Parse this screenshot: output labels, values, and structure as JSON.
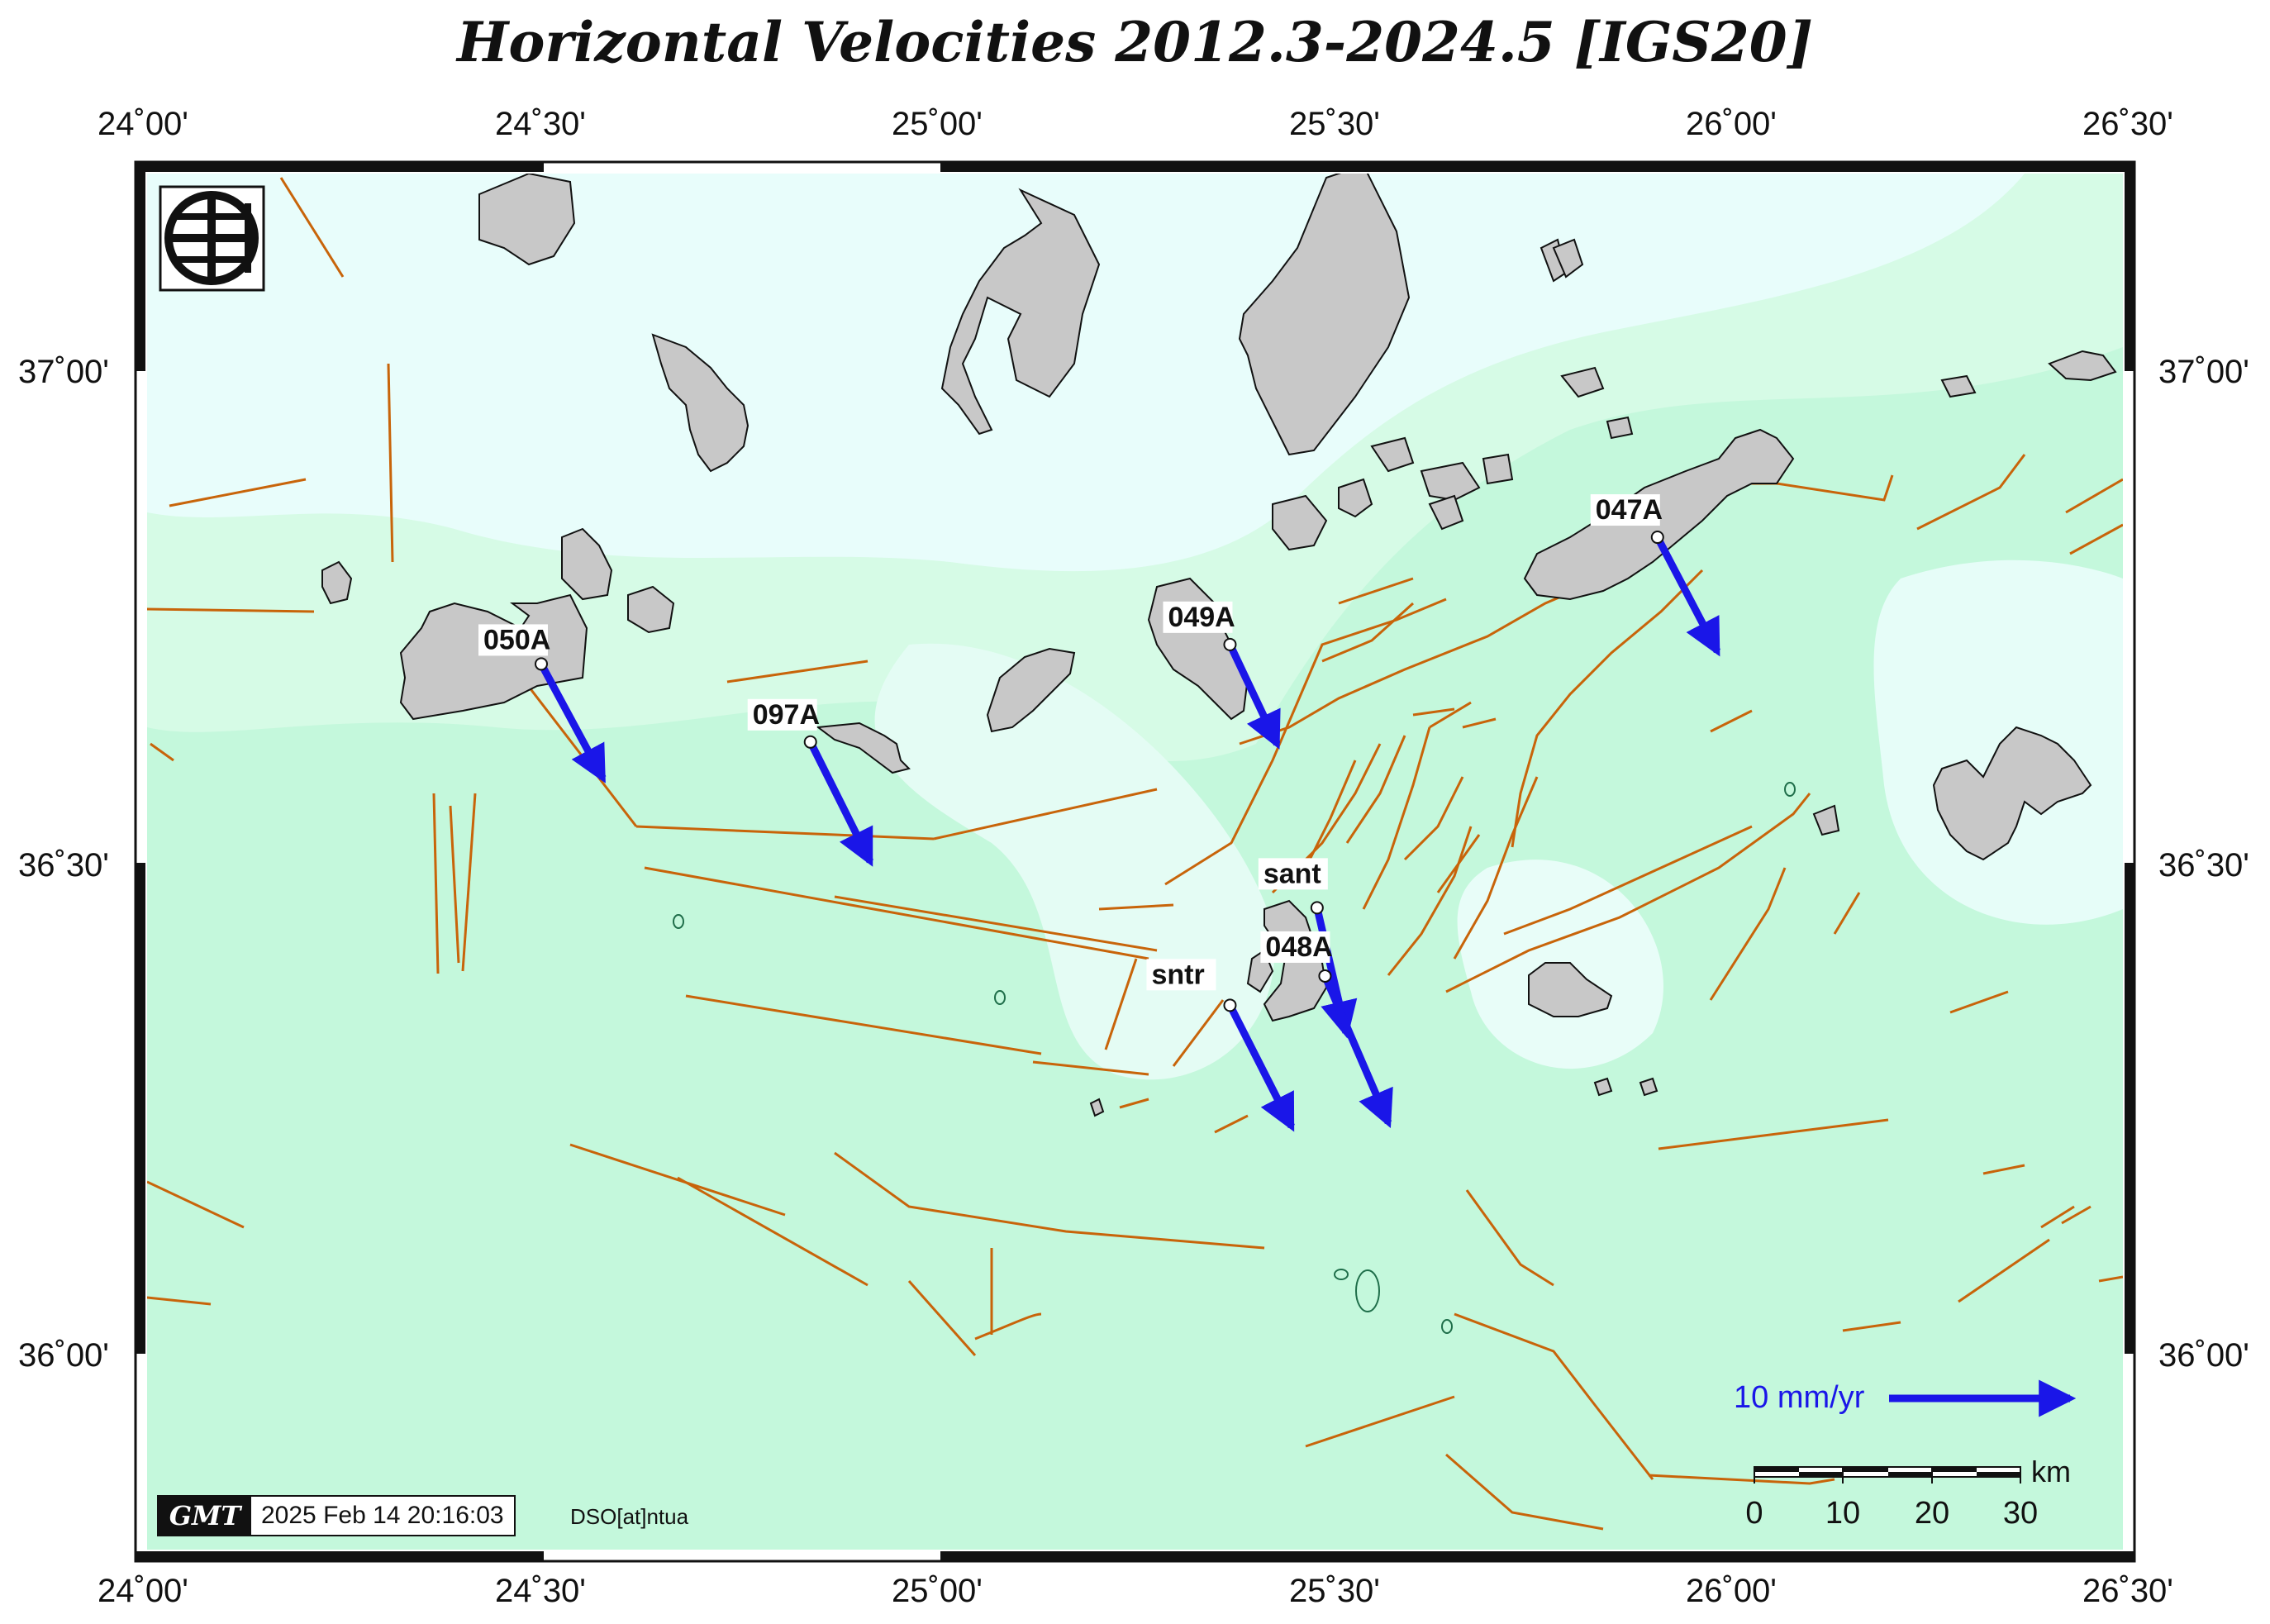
{
  "title": "Horizontal Velocities 2012.3-2024.5 [IGS20]",
  "longitude_ticks": [
    "24˚00'",
    "24˚30'",
    "25˚00'",
    "25˚30'",
    "26˚00'",
    "26˚30'"
  ],
  "latitude_ticks": [
    "37˚00'",
    "36˚30'",
    "36˚00'"
  ],
  "stations": [
    {
      "id": "050A",
      "lon": 24.5,
      "lat": 36.71,
      "ve": 3.4,
      "vn": -6.3
    },
    {
      "id": "097A",
      "lon": 24.84,
      "lat": 36.63,
      "ve": 3.3,
      "vn": -6.6
    },
    {
      "id": "049A",
      "lon": 25.37,
      "lat": 36.73,
      "ve": 2.6,
      "vn": -5.5
    },
    {
      "id": "047A",
      "lon": 25.91,
      "lat": 36.84,
      "ve": 3.3,
      "vn": -6.3
    },
    {
      "id": "sant",
      "lon": 25.48,
      "lat": 36.46,
      "ve": 1.6,
      "vn": -6.9
    },
    {
      "id": "048A",
      "lon": 25.49,
      "lat": 36.39,
      "ve": 3.5,
      "vn": -8.1
    },
    {
      "id": "sntr",
      "lon": 25.37,
      "lat": 36.36,
      "ve": 3.4,
      "vn": -6.7
    }
  ],
  "reference_arrow": {
    "label": "10 mm/yr",
    "value": 10
  },
  "scale_bar": {
    "ticks": [
      "0",
      "10",
      "20",
      "30"
    ],
    "unit": "km"
  },
  "timestamp": "2025 Feb 14 20:16:03",
  "gmt_logo": "GMT",
  "credit": "DSO[at]ntua",
  "colors": {
    "arrow": "#1a16e8",
    "fault": "#c8640a",
    "land": "#c8c8c8",
    "sea_deep": "#c4f8dc",
    "sea_shallow": "#e8fdfb"
  },
  "icons": [
    "institution-logo-icon",
    "gmt-logo-icon"
  ]
}
